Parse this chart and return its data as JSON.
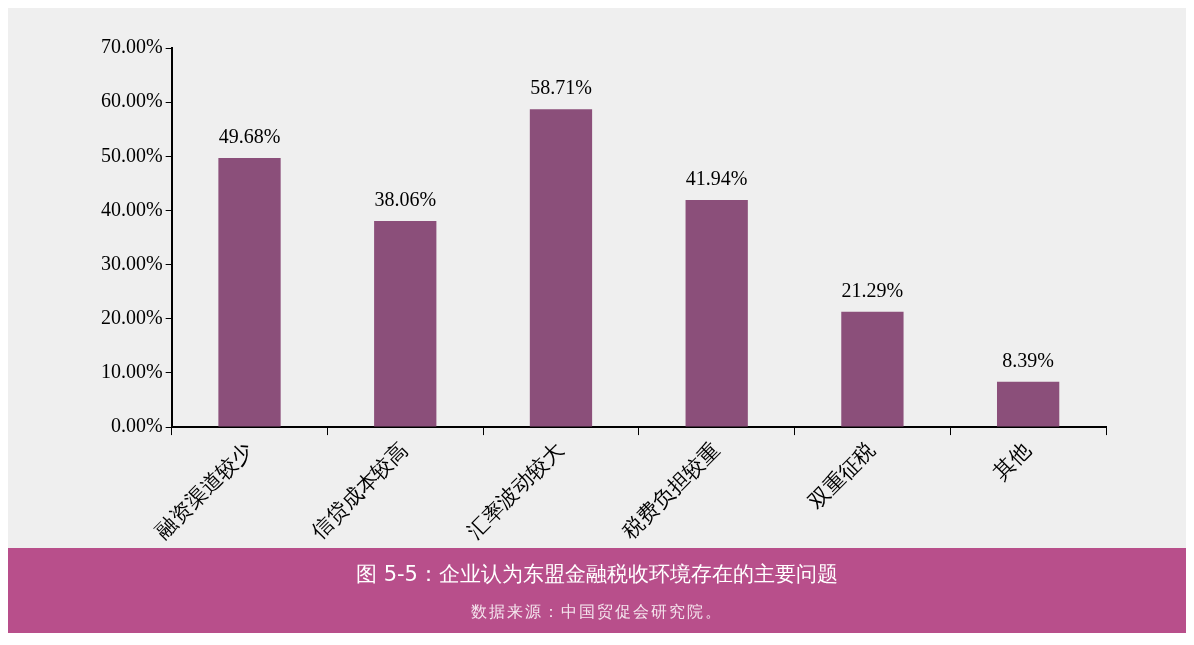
{
  "chart_data": {
    "type": "bar",
    "title": "图 5-5：企业认为东盟金融税收环境存在的主要问题",
    "annotations": [
      "数据来源：中国贸促会研究院。"
    ],
    "categories": [
      "融资渠道较少",
      "信贷成本较高",
      "汇率波动较大",
      "税费负担较重",
      "双重征税",
      "其他"
    ],
    "values": [
      49.68,
      38.06,
      58.71,
      41.94,
      21.29,
      8.39
    ],
    "value_labels": [
      "49.68%",
      "38.06%",
      "58.71%",
      "41.94%",
      "21.29%",
      "8.39%"
    ],
    "color": "#8b4f7a",
    "ylim": [
      0,
      70
    ],
    "yticks": [
      {
        "value": 0,
        "label": "0.00%"
      },
      {
        "value": 10,
        "label": "10.00%"
      },
      {
        "value": 20,
        "label": "20.00%"
      },
      {
        "value": 30,
        "label": "30.00%"
      },
      {
        "value": 40,
        "label": "40.00%"
      },
      {
        "value": 50,
        "label": "50.00%"
      },
      {
        "value": 60,
        "label": "60.00%"
      },
      {
        "value": 70,
        "label": "70.00%"
      }
    ],
    "grid": false,
    "legend": false
  }
}
